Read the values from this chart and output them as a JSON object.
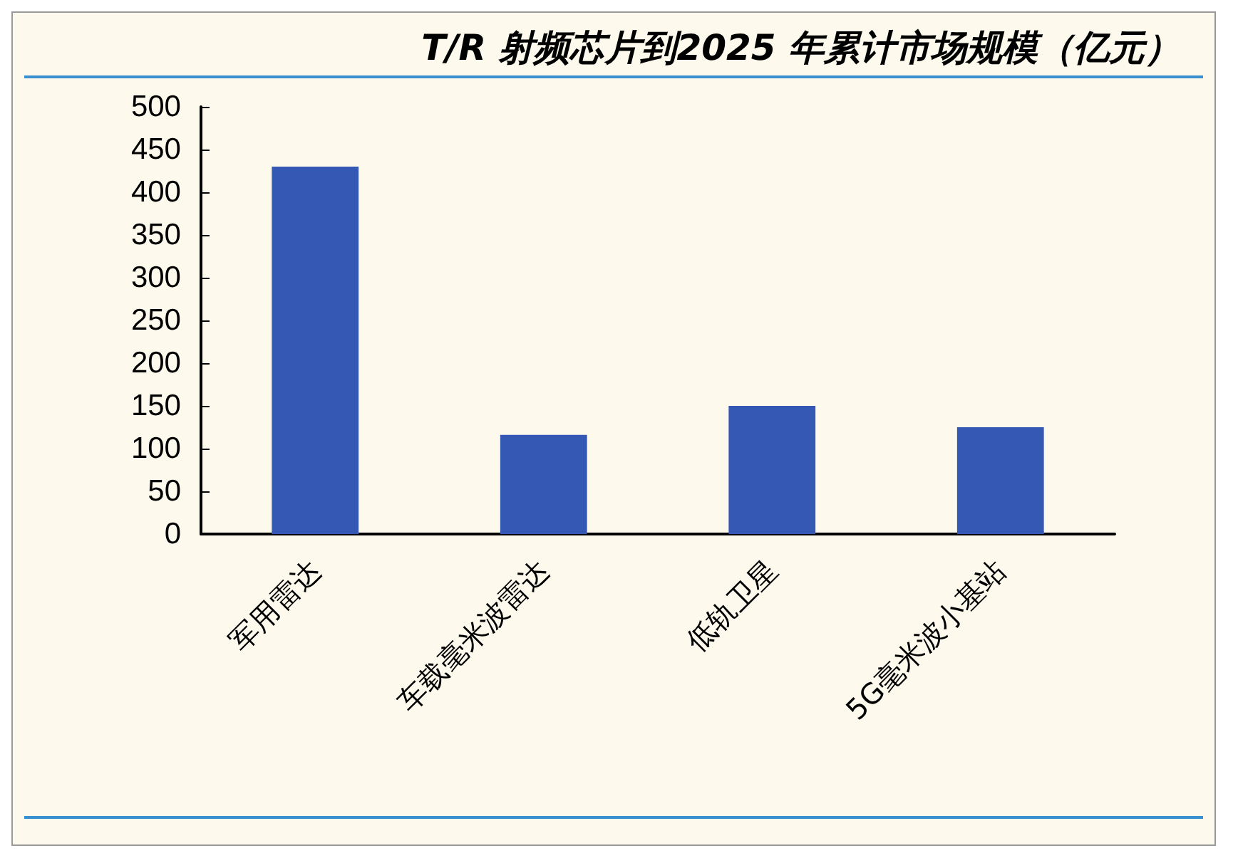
{
  "chart_data": {
    "type": "bar",
    "title": "T/R 射频芯片到2025 年累计市场规模（亿元）",
    "categories": [
      "军用雷达",
      "车载毫米波雷达",
      "低轨卫星",
      "5G毫米波小基站"
    ],
    "values": [
      430,
      116,
      150,
      125
    ],
    "color": "#3558b4",
    "ylim": [
      0,
      500
    ],
    "yticks": [
      0,
      50,
      100,
      150,
      200,
      250,
      300,
      350,
      400,
      450,
      500
    ],
    "grid": false
  }
}
